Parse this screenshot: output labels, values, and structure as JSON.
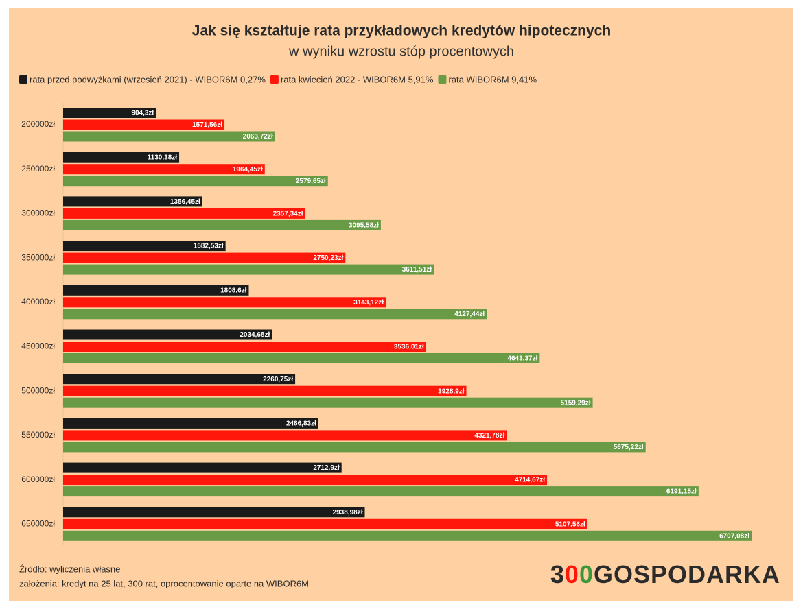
{
  "chart_data": {
    "type": "bar",
    "orientation": "horizontal",
    "title": "Jak się kształtuje rata przykładowych kredytów hipotecznych",
    "subtitle": "w wyniku wzrostu stóp procentowych",
    "categories": [
      "200000zł",
      "250000zł",
      "300000zł",
      "350000zł",
      "400000zł",
      "450000zł",
      "500000zł",
      "550000zł",
      "600000zł",
      "650000zł"
    ],
    "series": [
      {
        "name": "rata przed podwyżkami (wrzesień 2021) - WIBOR6M 0,27%",
        "color": "#1a1a1a",
        "values": [
          904.3,
          1130.38,
          1356.45,
          1582.53,
          1808.6,
          2034.68,
          2260.75,
          2486.83,
          2712.9,
          2938.98
        ],
        "value_labels": [
          "904,3zł",
          "1130,38zł",
          "1356,45zł",
          "1582,53zł",
          "1808,6zł",
          "2034,68zł",
          "2260,75zł",
          "2486,83zł",
          "2712,9zł",
          "2938,98zł"
        ]
      },
      {
        "name": "rata kwiecień 2022 - WIBOR6M 5,91%",
        "color": "#ff170c",
        "values": [
          1571.56,
          1964.45,
          2357.34,
          2750.23,
          3143.12,
          3536.01,
          3928.9,
          4321.78,
          4714.67,
          5107.56
        ],
        "value_labels": [
          "1571,56zł",
          "1964,45zł",
          "2357,34zł",
          "2750,23zł",
          "3143,12zł",
          "3536,01zł",
          "3928,9zł",
          "4321,78zł",
          "4714,67zł",
          "5107,56zł"
        ]
      },
      {
        "name": "rata WIBOR6M 9,41%",
        "color": "#699a45",
        "values": [
          2063.72,
          2579.65,
          3095.58,
          3611.51,
          4127.44,
          4643.37,
          5159.29,
          5675.22,
          6191.15,
          6707.08
        ],
        "value_labels": [
          "2063,72zł",
          "2579,65zł",
          "3095,58zł",
          "3611,51zł",
          "4127,44zł",
          "4643,37zł",
          "5159,29zł",
          "5675,22zł",
          "6191,15zł",
          "6707,08zł"
        ]
      }
    ],
    "source": "Źródło: wyliczenia własne",
    "note": "założenia: kredyt na 25 lat, 300 rat, oprocentowanie oparte na WIBOR6M",
    "logo": {
      "parts": [
        "3",
        "0",
        "0",
        "GOSPODARKA"
      ],
      "colors": [
        "#2b2b2b",
        "#ff170c",
        "#3a9a3a",
        "#2b2b2b"
      ]
    }
  }
}
